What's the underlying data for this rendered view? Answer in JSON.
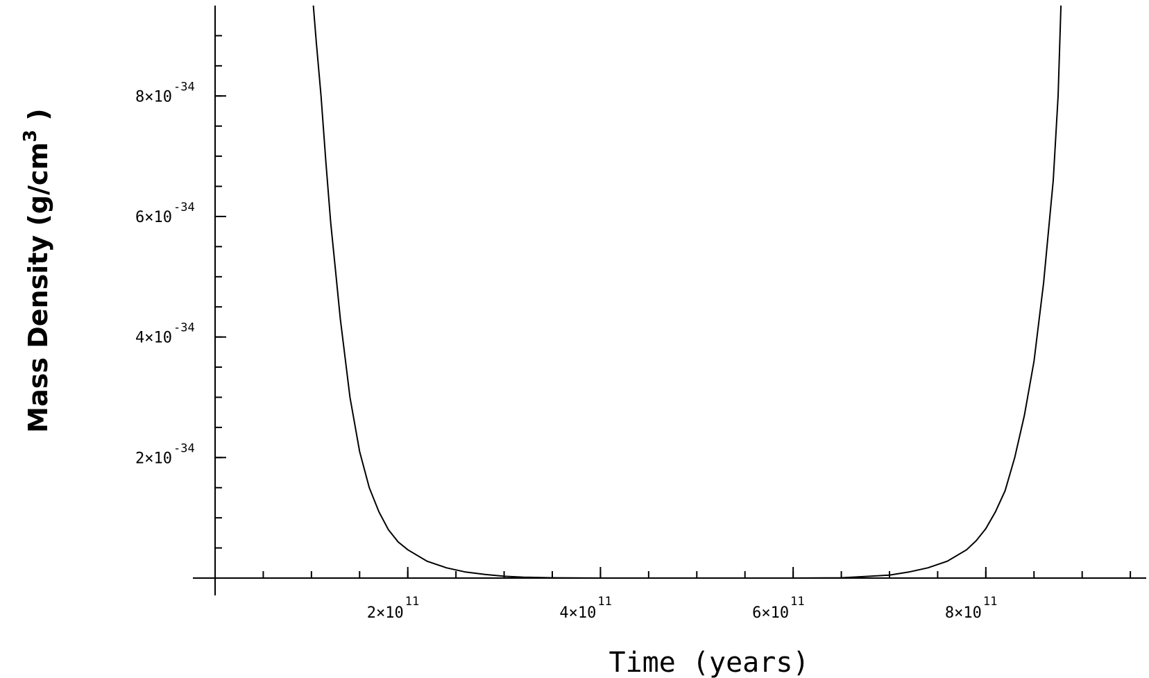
{
  "chart_data": {
    "type": "line",
    "xlabel": "Time (years)",
    "ylabel": {
      "text": "Mass Density (g/cm",
      "superscript": "3",
      "close": " )"
    },
    "xlim": [
      0,
      960000000000.0
    ],
    "ylim": [
      0,
      9.5e-34
    ],
    "x_ticks": [
      {
        "value": 200000000000.0,
        "mantissa": "2×10",
        "exponent": "11"
      },
      {
        "value": 400000000000.0,
        "mantissa": "4×10",
        "exponent": "11"
      },
      {
        "value": 600000000000.0,
        "mantissa": "6×10",
        "exponent": "11"
      },
      {
        "value": 800000000000.0,
        "mantissa": "8×10",
        "exponent": "11"
      }
    ],
    "y_ticks": [
      {
        "value": 2e-34,
        "mantissa": "2×10",
        "exponent": "-34"
      },
      {
        "value": 4e-34,
        "mantissa": "4×10",
        "exponent": "-34"
      },
      {
        "value": 6e-34,
        "mantissa": "6×10",
        "exponent": "-34"
      },
      {
        "value": 8e-34,
        "mantissa": "8×10",
        "exponent": "-34"
      }
    ],
    "x_minor_step": 50000000000.0,
    "y_minor_step": 5e-35,
    "grid": false,
    "series": [
      {
        "x": [
          102000000000.0,
          105000000000.0,
          110000000000.0,
          115000000000.0,
          120000000000.0,
          125000000000.0,
          130000000000.0,
          140000000000.0,
          150000000000.0,
          160000000000.0,
          170000000000.0,
          180000000000.0,
          190000000000.0,
          200000000000.0,
          220000000000.0,
          240000000000.0,
          260000000000.0,
          280000000000.0,
          300000000000.0,
          320000000000.0,
          350000000000.0,
          400000000000.0,
          450000000000.0,
          500000000000.0,
          550000000000.0,
          600000000000.0,
          650000000000.0,
          700000000000.0,
          720000000000.0,
          740000000000.0,
          760000000000.0,
          780000000000.0,
          790000000000.0,
          800000000000.0,
          810000000000.0,
          820000000000.0,
          830000000000.0,
          840000000000.0,
          850000000000.0,
          860000000000.0,
          870000000000.0,
          875000000000.0,
          878000000000.0
        ],
        "y": [
          9.5e-34,
          8.9e-34,
          8e-34,
          6.9e-34,
          5.9e-34,
          5.1e-34,
          4.3e-34,
          3e-34,
          2.1e-34,
          1.5e-34,
          1.1e-34,
          8e-35,
          6e-35,
          4.7e-35,
          2.8e-35,
          1.7e-35,
          1e-35,
          6e-36,
          3e-36,
          1.5e-36,
          5e-37,
          0.0,
          0.0,
          0.0,
          0.0,
          0.0,
          5e-37,
          5e-36,
          1e-35,
          1.7e-35,
          2.8e-35,
          4.7e-35,
          6.2e-35,
          8.2e-35,
          1.1e-34,
          1.45e-34,
          2e-34,
          2.7e-34,
          3.6e-34,
          4.9e-34,
          6.6e-34,
          8e-34,
          9.5e-34
        ]
      }
    ]
  }
}
